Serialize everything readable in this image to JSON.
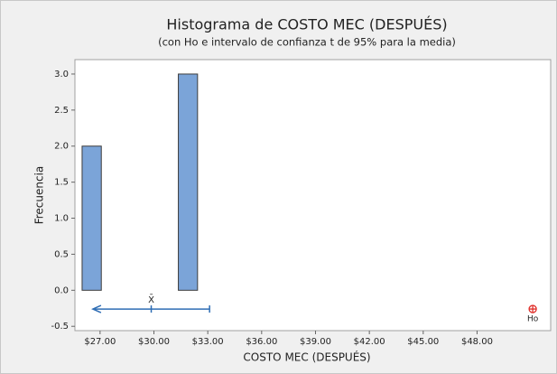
{
  "chart_data": {
    "type": "histogram",
    "title": "Histograma de COSTO MEC (DESPUÉS)",
    "subtitle": "(con Ho e intervalo de confianza t de 95% para la media)",
    "x_label": "COSTO MEC (DESPUÉS)",
    "y_label": "Frecuencia",
    "bins": [
      26.0,
      27.07,
      28.15,
      29.22,
      30.29,
      31.36,
      32.43
    ],
    "values": [
      2,
      0,
      0,
      0,
      0,
      3
    ],
    "color": "#7ba4d8",
    "xlim": [
      25.6,
      52.1
    ],
    "ylim": [
      -0.56,
      3.2
    ],
    "xticks": [
      {
        "value": 27,
        "label": "$27.00"
      },
      {
        "value": 30,
        "label": "$30.00"
      },
      {
        "value": 33,
        "label": "$33.00"
      },
      {
        "value": 36,
        "label": "$36.00"
      },
      {
        "value": 39,
        "label": "$39.00"
      },
      {
        "value": 42,
        "label": "$42.00"
      },
      {
        "value": 45,
        "label": "$45.00"
      },
      {
        "value": 48,
        "label": "$48.00"
      }
    ],
    "yticks": [
      {
        "value": -0.5,
        "label": "-0.5"
      },
      {
        "value": 0,
        "label": "0.0"
      },
      {
        "value": 0.5,
        "label": "0.5"
      },
      {
        "value": 1,
        "label": "1.0"
      },
      {
        "value": 1.5,
        "label": "1.5"
      },
      {
        "value": 2,
        "label": "2.0"
      },
      {
        "value": 2.5,
        "label": "2.5"
      },
      {
        "value": 3,
        "label": "3.0"
      }
    ],
    "mean": 29.85,
    "mean_label": "X̄",
    "ci": [
      26.6,
      33.1
    ],
    "interval_y": -0.26,
    "interval_color": "#2e6db4",
    "ho": 51.1,
    "ho_label": "Ho",
    "ho_color": "#e0302b"
  }
}
